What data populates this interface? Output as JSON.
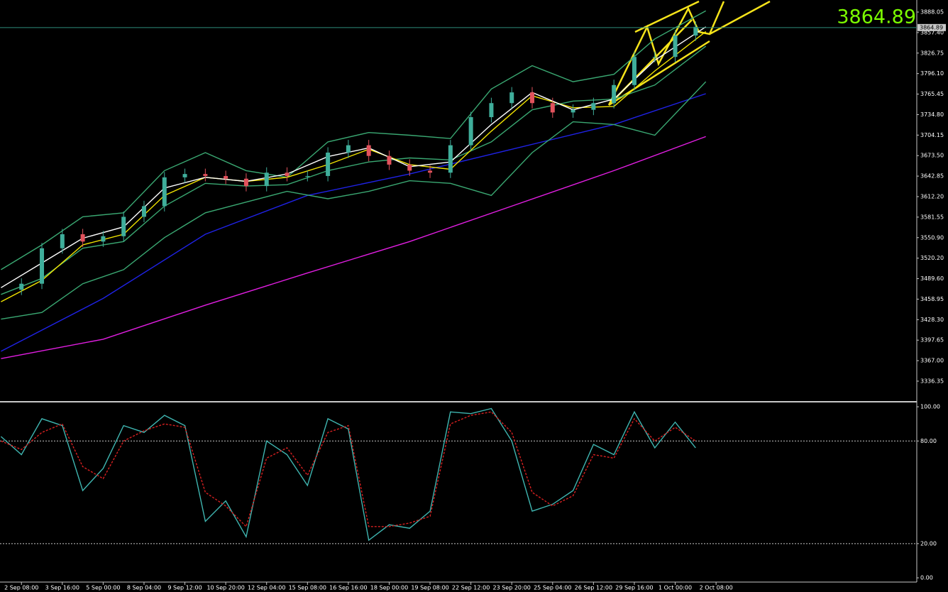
{
  "chart_data": [
    {
      "type": "candlestick",
      "x": [
        0,
        4,
        8,
        12,
        16,
        20,
        24,
        28,
        32,
        36,
        40,
        44,
        48,
        52,
        56,
        60,
        64,
        68,
        72,
        76,
        80,
        84,
        88,
        92,
        96,
        100,
        104,
        108,
        112,
        116,
        120,
        124,
        128,
        132
      ],
      "open": [
        3473,
        3482,
        3535,
        3556,
        3545,
        3553,
        3582,
        3598,
        3641,
        3646,
        3643,
        3639,
        3628,
        3648,
        3643,
        3643,
        3678,
        3689,
        3673,
        3660,
        3651,
        3648,
        3689,
        3731,
        3752,
        3768,
        3752,
        3738,
        3742,
        3752,
        3779,
        3821,
        3821,
        3853
      ],
      "high": [
        3490,
        3543,
        3564,
        3564,
        3561,
        3590,
        3606,
        3649,
        3654,
        3654,
        3651,
        3647,
        3656,
        3656,
        3651,
        3686,
        3697,
        3697,
        3681,
        3668,
        3659,
        3697,
        3739,
        3760,
        3776,
        3776,
        3760,
        3750,
        3760,
        3787,
        3829,
        3829,
        3861,
        3874
      ],
      "low": [
        3465,
        3474,
        3527,
        3537,
        3537,
        3545,
        3574,
        3590,
        3633,
        3635,
        3631,
        3620,
        3620,
        3635,
        3635,
        3635,
        3670,
        3665,
        3652,
        3643,
        3640,
        3640,
        3681,
        3723,
        3744,
        3744,
        3730,
        3730,
        3734,
        3744,
        3771,
        3813,
        3813,
        3845
      ],
      "close": [
        3482,
        3535,
        3556,
        3545,
        3553,
        3582,
        3598,
        3641,
        3646,
        3643,
        3639,
        3628,
        3648,
        3643,
        3643,
        3678,
        3689,
        3673,
        3660,
        3651,
        3648,
        3689,
        3731,
        3752,
        3768,
        3752,
        3738,
        3742,
        3752,
        3779,
        3821,
        3821,
        3853,
        3866
      ],
      "up_color": "#3fae9b",
      "down_color": "#e2525c",
      "series": [
        {
          "color": "#1f22e6",
          "x": [
            -4,
            16,
            36,
            56,
            76,
            96,
            116,
            134
          ],
          "values": [
            3381,
            3460,
            3556,
            3614,
            3646,
            3683,
            3720,
            3766
          ]
        },
        {
          "color": "#e21ee2",
          "x": [
            -4,
            16,
            36,
            56,
            76,
            96,
            116,
            134
          ],
          "values": [
            3370,
            3399,
            3450,
            3498,
            3545,
            3598,
            3651,
            3702
          ]
        },
        {
          "color": "#3aa872",
          "x": [
            -4,
            4,
            12,
            20,
            28,
            36,
            44,
            52,
            60,
            68,
            76,
            84,
            92,
            100,
            108,
            116,
            124,
            134
          ],
          "values": [
            3503,
            3540,
            3582,
            3588,
            3651,
            3678,
            3651,
            3641,
            3694,
            3708,
            3704,
            3699,
            3773,
            3808,
            3784,
            3795,
            3848,
            3890
          ]
        },
        {
          "color": "#3aa872",
          "x": [
            -4,
            4,
            12,
            20,
            28,
            36,
            44,
            52,
            60,
            68,
            76,
            84,
            92,
            100,
            108,
            116,
            124,
            134
          ],
          "values": [
            3466,
            3490,
            3535,
            3545,
            3598,
            3632,
            3628,
            3630,
            3651,
            3664,
            3670,
            3667,
            3694,
            3742,
            3755,
            3758,
            3779,
            3837
          ]
        },
        {
          "color": "#3aa872",
          "x": [
            -4,
            4,
            12,
            20,
            28,
            36,
            44,
            52,
            60,
            68,
            76,
            84,
            92,
            100,
            108,
            116,
            124,
            134
          ],
          "values": [
            3429,
            3439,
            3482,
            3503,
            3551,
            3588,
            3604,
            3620,
            3609,
            3620,
            3636,
            3632,
            3614,
            3678,
            3724,
            3720,
            3704,
            3784
          ]
        },
        {
          "color": "#f2e400",
          "x": [
            -4,
            4,
            12,
            20,
            28,
            36,
            44,
            52,
            60,
            68,
            76,
            84,
            92,
            100,
            108,
            116,
            124,
            134
          ],
          "values": [
            3455,
            3487,
            3540,
            3556,
            3614,
            3641,
            3635,
            3641,
            3660,
            3683,
            3660,
            3653,
            3710,
            3763,
            3745,
            3747,
            3800,
            3859
          ]
        },
        {
          "color": "#ffffff",
          "x": [
            -4,
            4,
            12,
            20,
            28,
            36,
            44,
            52,
            60,
            68,
            76,
            84,
            92,
            100,
            108,
            116,
            124,
            134
          ],
          "values": [
            3476,
            3513,
            3550,
            3567,
            3625,
            3641,
            3635,
            3646,
            3672,
            3685,
            3657,
            3664,
            3720,
            3768,
            3742,
            3758,
            3816,
            3866
          ]
        }
      ],
      "current_price": 3864.89,
      "current_color": "#2e8b7a",
      "xlim": [
        -4.2,
        175.3
      ],
      "ylim": [
        3306.6,
        3906.1
      ],
      "yticks": [
        3888.05,
        {
          "value": 3857.4,
          "label": "3857.40"
        },
        3826.75,
        {
          "value": 3796.1,
          "label": "3796.10"
        },
        3765.45,
        {
          "value": 3734.8,
          "label": "3734.80"
        },
        3704.15,
        {
          "value": 3673.5,
          "label": "3673.50"
        },
        3642.85,
        {
          "value": 3612.2,
          "label": "3612.20"
        },
        3581.55,
        {
          "value": 3550.9,
          "label": "3550.90"
        },
        {
          "value": 3520.2,
          "label": "3520.20"
        },
        {
          "value": 3489.6,
          "label": "3489.60"
        },
        3458.95,
        {
          "value": 3428.3,
          "label": "3428.30"
        },
        3397.65,
        {
          "value": 3367,
          "label": "3367.00"
        },
        3336.35
      ],
      "xticks": [
        {
          "value": 0,
          "label": "2 Sep 08:00"
        },
        {
          "value": 8,
          "label": "3 Sep 16:00"
        },
        {
          "value": 16,
          "label": "5 Sep 00:00"
        },
        {
          "value": 24,
          "label": "8 Sep 04:00"
        },
        {
          "value": 32,
          "label": "9 Sep 12:00"
        },
        {
          "value": 40,
          "label": "10 Sep 20:00"
        },
        {
          "value": 48,
          "label": "12 Sep 04:00"
        },
        {
          "value": 56,
          "label": "15 Sep 08:00"
        },
        {
          "value": 64,
          "label": "16 Sep 16:00"
        },
        {
          "value": 72,
          "label": "18 Sep 00:00"
        },
        {
          "value": 80,
          "label": "19 Sep 08:00"
        },
        {
          "value": 88,
          "label": "22 Sep 12:00"
        },
        {
          "value": 96,
          "label": "23 Sep 20:00"
        },
        {
          "value": 104,
          "label": "25 Sep 04:00"
        },
        {
          "value": 112,
          "label": "26 Sep 12:00"
        },
        {
          "value": 120,
          "label": "29 Sep 16:00"
        },
        {
          "value": 128,
          "label": "1 Oct 00:00"
        },
        {
          "value": 136,
          "label": "2 Oct 08:00"
        }
      ]
    },
    {
      "type": "line",
      "x": [
        -4,
        0,
        4,
        8,
        12,
        16,
        20,
        24,
        28,
        32,
        36,
        40,
        44,
        48,
        52,
        56,
        60,
        64,
        68,
        72,
        76,
        80,
        84,
        88,
        92,
        96,
        100,
        104,
        108,
        112,
        116,
        120,
        124,
        128,
        132
      ],
      "series": [
        {
          "color": "#3fb5b0",
          "dash": false,
          "values": [
            82.6,
            72,
            93,
            89,
            51,
            64,
            89,
            85,
            95,
            89,
            33,
            45,
            24,
            80,
            72,
            54,
            93,
            87,
            22,
            31,
            29,
            39,
            97,
            96,
            99,
            80,
            39,
            43,
            51,
            78,
            72,
            97,
            76,
            91,
            76
          ]
        },
        {
          "color": "#d62020",
          "dash": true,
          "values": [
            80,
            75,
            85,
            90,
            65,
            58,
            80,
            86,
            90,
            88,
            50,
            42,
            30,
            70,
            76,
            60,
            85,
            89,
            30,
            30,
            32,
            36,
            90,
            95,
            97,
            85,
            50,
            42,
            48,
            72,
            70,
            93,
            80,
            88,
            80
          ]
        }
      ],
      "xlim": [
        -4.2,
        175.3
      ],
      "ylim": [
        -3.3,
        102.1
      ],
      "yticks": [
        {
          "value": 100,
          "label": "100.00"
        },
        {
          "value": 80,
          "label": "80.00"
        },
        {
          "value": 20,
          "label": "20.00"
        },
        {
          "value": 0,
          "label": "0.00"
        }
      ],
      "levels": [
        80,
        20
      ]
    }
  ]
}
